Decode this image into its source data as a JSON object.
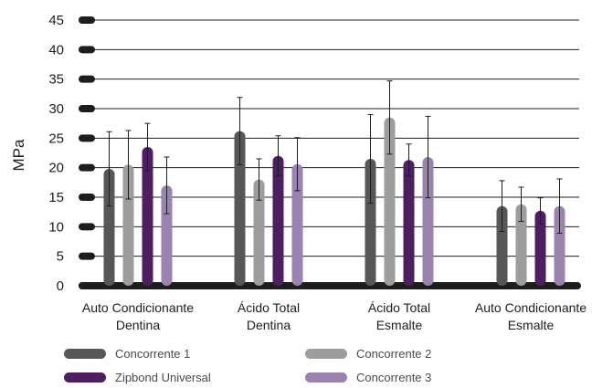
{
  "chart_data": {
    "type": "bar",
    "ylabel": "MPa",
    "ylim": [
      0,
      45
    ],
    "yticks": [
      0,
      5,
      10,
      15,
      20,
      25,
      30,
      35,
      40,
      45
    ],
    "grid": true,
    "legend_position": "bottom",
    "categories": [
      [
        "Auto Condicionante",
        "Dentina"
      ],
      [
        "Ácido Total",
        "Dentina"
      ],
      [
        "Ácido Total",
        "Esmalte"
      ],
      [
        "Auto Condicionante",
        "Esmalte"
      ]
    ],
    "series": [
      {
        "name": "Concorrente 1",
        "color": "#575756",
        "values": [
          19.8,
          26.2,
          21.5,
          13.5
        ],
        "error": [
          6.3,
          5.7,
          7.5,
          4.3
        ]
      },
      {
        "name": "Concorrente 2",
        "color": "#9d9d9c",
        "values": [
          20.5,
          18.0,
          28.5,
          13.8
        ],
        "error": [
          5.8,
          3.5,
          6.2,
          2.9
        ]
      },
      {
        "name": "Zipbond Universal",
        "color": "#4d1f60",
        "values": [
          23.5,
          22.0,
          21.3,
          12.7
        ],
        "error": [
          4.0,
          3.4,
          2.7,
          2.2
        ]
      },
      {
        "name": "Concorrente 3",
        "color": "#9b83b0",
        "values": [
          17.0,
          20.6,
          21.8,
          13.5
        ],
        "error": [
          4.8,
          4.5,
          6.9,
          4.6
        ]
      }
    ]
  }
}
